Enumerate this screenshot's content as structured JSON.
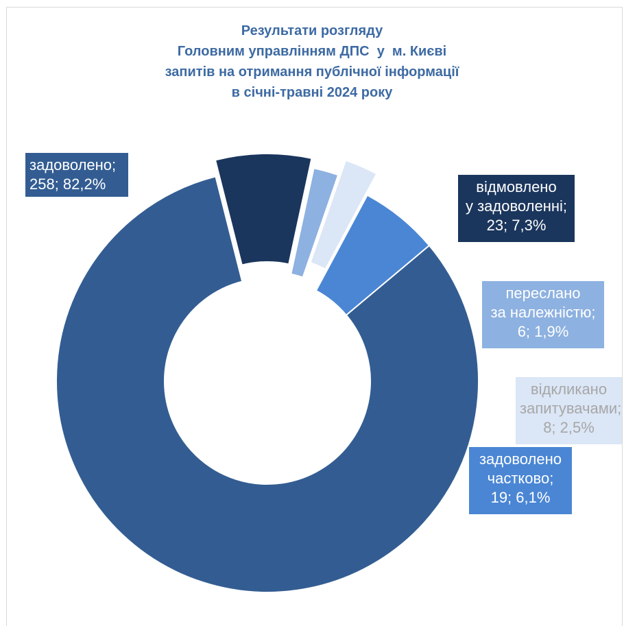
{
  "chart_data": {
    "type": "donut",
    "title_lines": [
      "Результати розгляду",
      "Головним управлінням ДПС  у  м. Києві",
      "запитів на отримання публічної інформації",
      "в січні-травні 2024 року"
    ],
    "slices": [
      {
        "name": "задоволено",
        "value": 258,
        "percent": "82,2%",
        "color": "#335d92",
        "label_lines": [
          "задоволено;",
          "258; 82,2%"
        ],
        "label_text_color": "#ffffff"
      },
      {
        "name": "відмовлено у задоволенні",
        "value": 23,
        "percent": "7,3%",
        "color": "#1b365d",
        "label_lines": [
          "відмовлено",
          "у задоволенні;",
          "23; 7,3%"
        ],
        "label_text_color": "#ffffff"
      },
      {
        "name": "переслано за належністю",
        "value": 6,
        "percent": "1,9%",
        "color": "#8db1e0",
        "label_lines": [
          "переслано",
          "за належністю;",
          "6; 1,9%"
        ],
        "label_text_color": "#ffffff"
      },
      {
        "name": "відкликано запитувачами",
        "value": 8,
        "percent": "2,5%",
        "color": "#dbe6f6",
        "label_lines": [
          "відкликано",
          "запитувачами;",
          "8; 2,5%"
        ],
        "label_text_color": "#a7a7a7"
      },
      {
        "name": "задоволено частково",
        "value": 19,
        "percent": "6,1%",
        "color": "#4a86d4",
        "label_lines": [
          "задоволено",
          "частково;",
          "19; 6,1%"
        ],
        "label_text_color": "#ffffff"
      }
    ]
  }
}
